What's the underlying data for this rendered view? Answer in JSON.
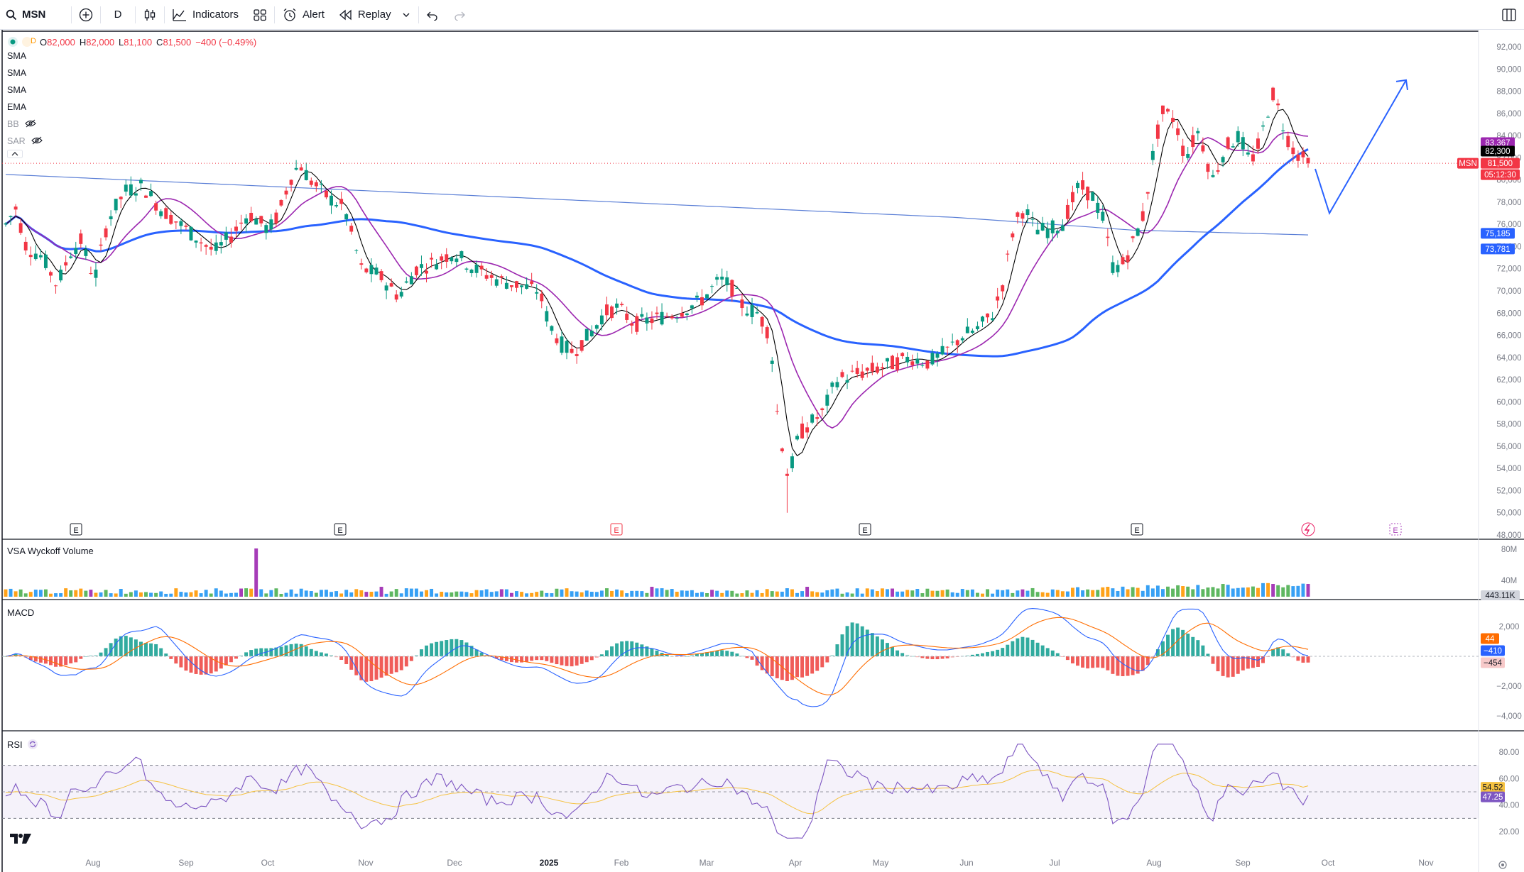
{
  "toolbar": {
    "symbol": "MSN",
    "interval": "D",
    "indicators_label": "Indicators",
    "alert_label": "Alert",
    "replay_label": "Replay"
  },
  "legend": {
    "o_label": "O",
    "open": "82,000",
    "h_label": "H",
    "high": "82,000",
    "l_label": "L",
    "low": "81,100",
    "c_label": "C",
    "close": "81,500",
    "change": "−400 (−0.49%)",
    "interval_badge": "D",
    "indicators": [
      "SMA",
      "SMA",
      "SMA",
      "EMA",
      "BB",
      "SAR"
    ]
  },
  "panes": {
    "volume_title": "VSA Wyckoff Volume",
    "macd_title": "MACD",
    "rsi_title": "RSI"
  },
  "price_axis": {
    "ticks": [
      "92,000",
      "90,000",
      "88,000",
      "86,000",
      "84,000",
      "82,000",
      "80,000",
      "78,000",
      "76,000",
      "74,000",
      "72,000",
      "70,000",
      "68,000",
      "66,000",
      "64,000",
      "62,000",
      "60,000",
      "58,000",
      "56,000",
      "54,000",
      "52,000",
      "50,000",
      "48,000"
    ],
    "labels": {
      "sma_purple": "83,367",
      "sma_black": "82,300",
      "symbol_tag": "MSN",
      "last_price": "81,500",
      "countdown": "05:12:30",
      "sma_long": "75,185",
      "sma_mid": "73,781"
    }
  },
  "volume_axis": {
    "ticks": [
      "80M",
      "40M"
    ],
    "last": "443.11K"
  },
  "macd_axis": {
    "ticks": [
      "2,000",
      "−2,000",
      "−4,000"
    ],
    "hist": "44",
    "macd": "−410",
    "signal": "−454"
  },
  "rsi_axis": {
    "ticks": [
      "80.00",
      "60.00",
      "40.00",
      "20.00"
    ],
    "ma": "54.52",
    "rsi": "47.25"
  },
  "time_axis": [
    "Aug",
    "Sep",
    "Oct",
    "Nov",
    "Dec",
    "2025",
    "Feb",
    "Mar",
    "Apr",
    "May",
    "Jun",
    "Jul",
    "Aug",
    "Sep",
    "Oct",
    "Nov"
  ],
  "earnings_marker": "E",
  "colors": {
    "up": "#089981",
    "down": "#f23645",
    "sma_black": "#000000",
    "sma_purple": "#9c27b0",
    "sma_blue": "#2962ff",
    "sma_long": "#5b7fd6",
    "projection": "#2962ff",
    "macd": "#2962ff",
    "signal": "#ff6d00",
    "rsi": "#7e57c2",
    "rsi_ma": "#f5c242"
  },
  "chart_data": {
    "type": "candlestick",
    "symbol": "MSN",
    "interval": "D",
    "y_range": [
      48000,
      92000
    ],
    "months": [
      "Aug",
      "Sep",
      "Oct",
      "Nov",
      "Dec",
      "2025",
      "Feb",
      "Mar",
      "Apr",
      "May",
      "Jun",
      "Jul",
      "Aug",
      "Sep"
    ],
    "price_path_approx": [
      [
        "Jul",
        77000
      ],
      [
        "Aug",
        71000
      ],
      [
        "Sep",
        79500
      ],
      [
        "Oct",
        75000
      ],
      [
        "Oct",
        81500
      ],
      [
        "Nov",
        72000
      ],
      [
        "Nov",
        69500
      ],
      [
        "Dec",
        74000
      ],
      [
        "Dec",
        71000
      ],
      [
        "2025",
        70000
      ],
      [
        "Feb",
        64500
      ],
      [
        "Feb",
        68500
      ],
      [
        "Mar",
        68000
      ],
      [
        "Mar",
        71500
      ],
      [
        "Apr",
        68000
      ],
      [
        "Apr",
        50000
      ],
      [
        "Apr",
        59000
      ],
      [
        "May",
        62500
      ],
      [
        "Jun",
        64000
      ],
      [
        "Jun",
        67000
      ],
      [
        "Jul",
        77500
      ],
      [
        "Jul",
        75000
      ],
      [
        "Aug",
        80000
      ],
      [
        "Aug",
        71500
      ],
      [
        "Aug",
        87000
      ],
      [
        "Sep",
        79500
      ],
      [
        "Sep",
        89000
      ],
      [
        "Sep",
        81500
      ]
    ],
    "last": {
      "open": 82000,
      "high": 82000,
      "low": 81100,
      "close": 81500,
      "change": -400,
      "change_pct": -0.49
    },
    "moving_averages": [
      {
        "name": "SMA",
        "last": 82300
      },
      {
        "name": "SMA",
        "last": 83367
      },
      {
        "name": "SMA",
        "last": 73781
      },
      {
        "name": "SMA",
        "last": 75185
      }
    ],
    "macd": {
      "histogram": 44,
      "macd": -410,
      "signal": -454
    },
    "rsi": {
      "value": 47.25,
      "ma": 54.52,
      "upper": 70,
      "lower": 30
    },
    "volume": {
      "last": "443.11K"
    },
    "projection": [
      [
        "Sep",
        81000
      ],
      [
        "Oct",
        77000
      ],
      [
        "Oct",
        89000
      ]
    ]
  }
}
